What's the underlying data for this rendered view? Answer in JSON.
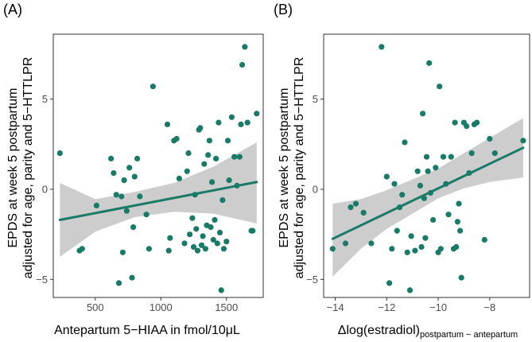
{
  "chart_data": [
    {
      "type": "scatter",
      "panel_label": "(A)",
      "xlabel": "Antepartum 5−HIAA in fmol/10μL",
      "ylabel_line1": "EPDS at week 5 postpartum",
      "ylabel_line2": "adjusted for age, parity and 5−HTTLPR",
      "xlim": [
        180,
        1780
      ],
      "ylim": [
        -6.0,
        8.6
      ],
      "xticks": [
        500,
        1000,
        1500
      ],
      "xtick_labels": [
        "500",
        "1000",
        "1500"
      ],
      "yticks": [
        -5,
        0,
        5
      ],
      "ytick_labels": [
        "−5",
        "0",
        "5"
      ],
      "grid": false,
      "point_color": "#1a7a68",
      "line_color": "#1a7a68",
      "band_color": "#c8c8c8",
      "fit": {
        "x": [
          230,
          1730
        ],
        "y": [
          -1.7,
          0.4
        ]
      },
      "band": {
        "x": [
          230,
          500,
          800,
          1100,
          1400,
          1730
        ],
        "lower": [
          -3.75,
          -2.35,
          -1.55,
          -1.25,
          -1.35,
          -1.9
        ],
        "upper": [
          0.35,
          -0.55,
          -0.15,
          0.35,
          1.25,
          2.6
        ]
      },
      "points": {
        "x": [
          230,
          380,
          400,
          510,
          620,
          640,
          660,
          680,
          700,
          710,
          720,
          740,
          760,
          780,
          790,
          800,
          820,
          840,
          890,
          910,
          940,
          1050,
          1060,
          1070,
          1100,
          1120,
          1140,
          1180,
          1200,
          1210,
          1220,
          1240,
          1250,
          1260,
          1270,
          1280,
          1290,
          1300,
          1310,
          1320,
          1330,
          1340,
          1350,
          1360,
          1370,
          1380,
          1390,
          1400,
          1410,
          1420,
          1430,
          1440,
          1450,
          1460,
          1470,
          1480,
          1500,
          1510,
          1520,
          1540,
          1560,
          1580,
          1600,
          1610,
          1620,
          1640,
          1660,
          1690,
          1700,
          1730
        ],
        "y": [
          2.0,
          -3.4,
          -3.3,
          -0.9,
          1.7,
          0.9,
          -0.3,
          -5.2,
          -0.4,
          -3.5,
          0.5,
          -1.2,
          1.2,
          -4.9,
          -2.1,
          0.7,
          1.7,
          -0.4,
          -1.4,
          -3.3,
          5.7,
          3.6,
          -3.4,
          -2.7,
          2.7,
          2.8,
          0.6,
          -3.0,
          1.0,
          2.0,
          -2.5,
          -1.6,
          -3.2,
          -0.3,
          -2.2,
          -3.4,
          3.3,
          3.4,
          -3.1,
          -2.6,
          1.4,
          -3.3,
          -2.0,
          1.9,
          2.7,
          -2.1,
          0.4,
          -2.8,
          -1.7,
          1.7,
          -3.0,
          3.7,
          -2.4,
          -5.6,
          -0.6,
          -3.3,
          -2.9,
          2.7,
          0.5,
          4.0,
          1.8,
          0.2,
          1.8,
          3.6,
          6.9,
          7.9,
          3.7,
          -2.3,
          -2.3,
          4.2
        ]
      }
    },
    {
      "type": "scatter",
      "panel_label": "(B)",
      "xlabel_main": "Δlog(estradiol)",
      "xlabel_sub": "postpartum − antepartum",
      "ylabel_line1": "EPDS at week 5 postpartum",
      "ylabel_line2": "adjusted for age, parity and 5−HTTLPR",
      "xlim": [
        -14.45,
        -6.45
      ],
      "ylim": [
        -6.0,
        8.6
      ],
      "xticks": [
        -14,
        -12,
        -10,
        -8
      ],
      "xtick_labels": [
        "−14",
        "−12",
        "−10",
        "−8"
      ],
      "yticks": [
        -5,
        0,
        5
      ],
      "ytick_labels": [
        "−5",
        "0",
        "5"
      ],
      "grid": false,
      "point_color": "#1a7a68",
      "line_color": "#1a7a68",
      "band_color": "#c8c8c8",
      "fit": {
        "x": [
          -14.1,
          -6.7
        ],
        "y": [
          -2.75,
          2.3
        ]
      },
      "band": {
        "x": [
          -14.1,
          -13.0,
          -12.0,
          -11.0,
          -10.0,
          -9.0,
          -8.0,
          -6.7
        ],
        "lower": [
          -4.85,
          -3.3,
          -2.2,
          -1.35,
          -0.5,
          0.05,
          0.4,
          0.65
        ],
        "upper": [
          -0.8,
          -0.55,
          -0.05,
          0.55,
          1.15,
          2.0,
          2.85,
          3.95
        ]
      },
      "points": {
        "x": [
          -14.1,
          -13.6,
          -13.4,
          -13.2,
          -12.9,
          -12.6,
          -12.2,
          -12.0,
          -11.9,
          -11.8,
          -11.7,
          -11.6,
          -11.5,
          -11.4,
          -11.3,
          -11.2,
          -11.1,
          -11.05,
          -10.9,
          -10.8,
          -10.7,
          -10.65,
          -10.6,
          -10.55,
          -10.5,
          -10.45,
          -10.4,
          -10.35,
          -10.3,
          -10.2,
          -10.1,
          -10.0,
          -9.95,
          -9.9,
          -9.8,
          -9.7,
          -9.6,
          -9.5,
          -9.4,
          -9.35,
          -9.3,
          -9.25,
          -9.2,
          -9.15,
          -9.1,
          -9.0,
          -8.9,
          -8.8,
          -8.7,
          -8.6,
          -8.5,
          -8.2,
          -8.0,
          -7.8,
          -6.7
        ],
        "y": [
          -3.3,
          -3.0,
          -1.0,
          -0.8,
          -1.3,
          -3.0,
          7.9,
          0.7,
          -5.2,
          -3.3,
          0.3,
          -2.3,
          -1.0,
          -0.3,
          2.6,
          -3.5,
          -5.6,
          -2.6,
          -3.4,
          1.0,
          0.2,
          -3.2,
          4.2,
          -0.5,
          -2.7,
          1.8,
          1.0,
          7.0,
          -0.2,
          -1.7,
          1.2,
          -3.5,
          5.7,
          -3.3,
          1.8,
          0.3,
          -1.4,
          1.8,
          -3.3,
          3.7,
          -3.2,
          -1.8,
          -0.8,
          -2.3,
          -4.9,
          3.7,
          3.5,
          0.9,
          2.0,
          3.6,
          3.7,
          -2.8,
          2.8,
          2.0,
          2.7
        ]
      }
    }
  ]
}
